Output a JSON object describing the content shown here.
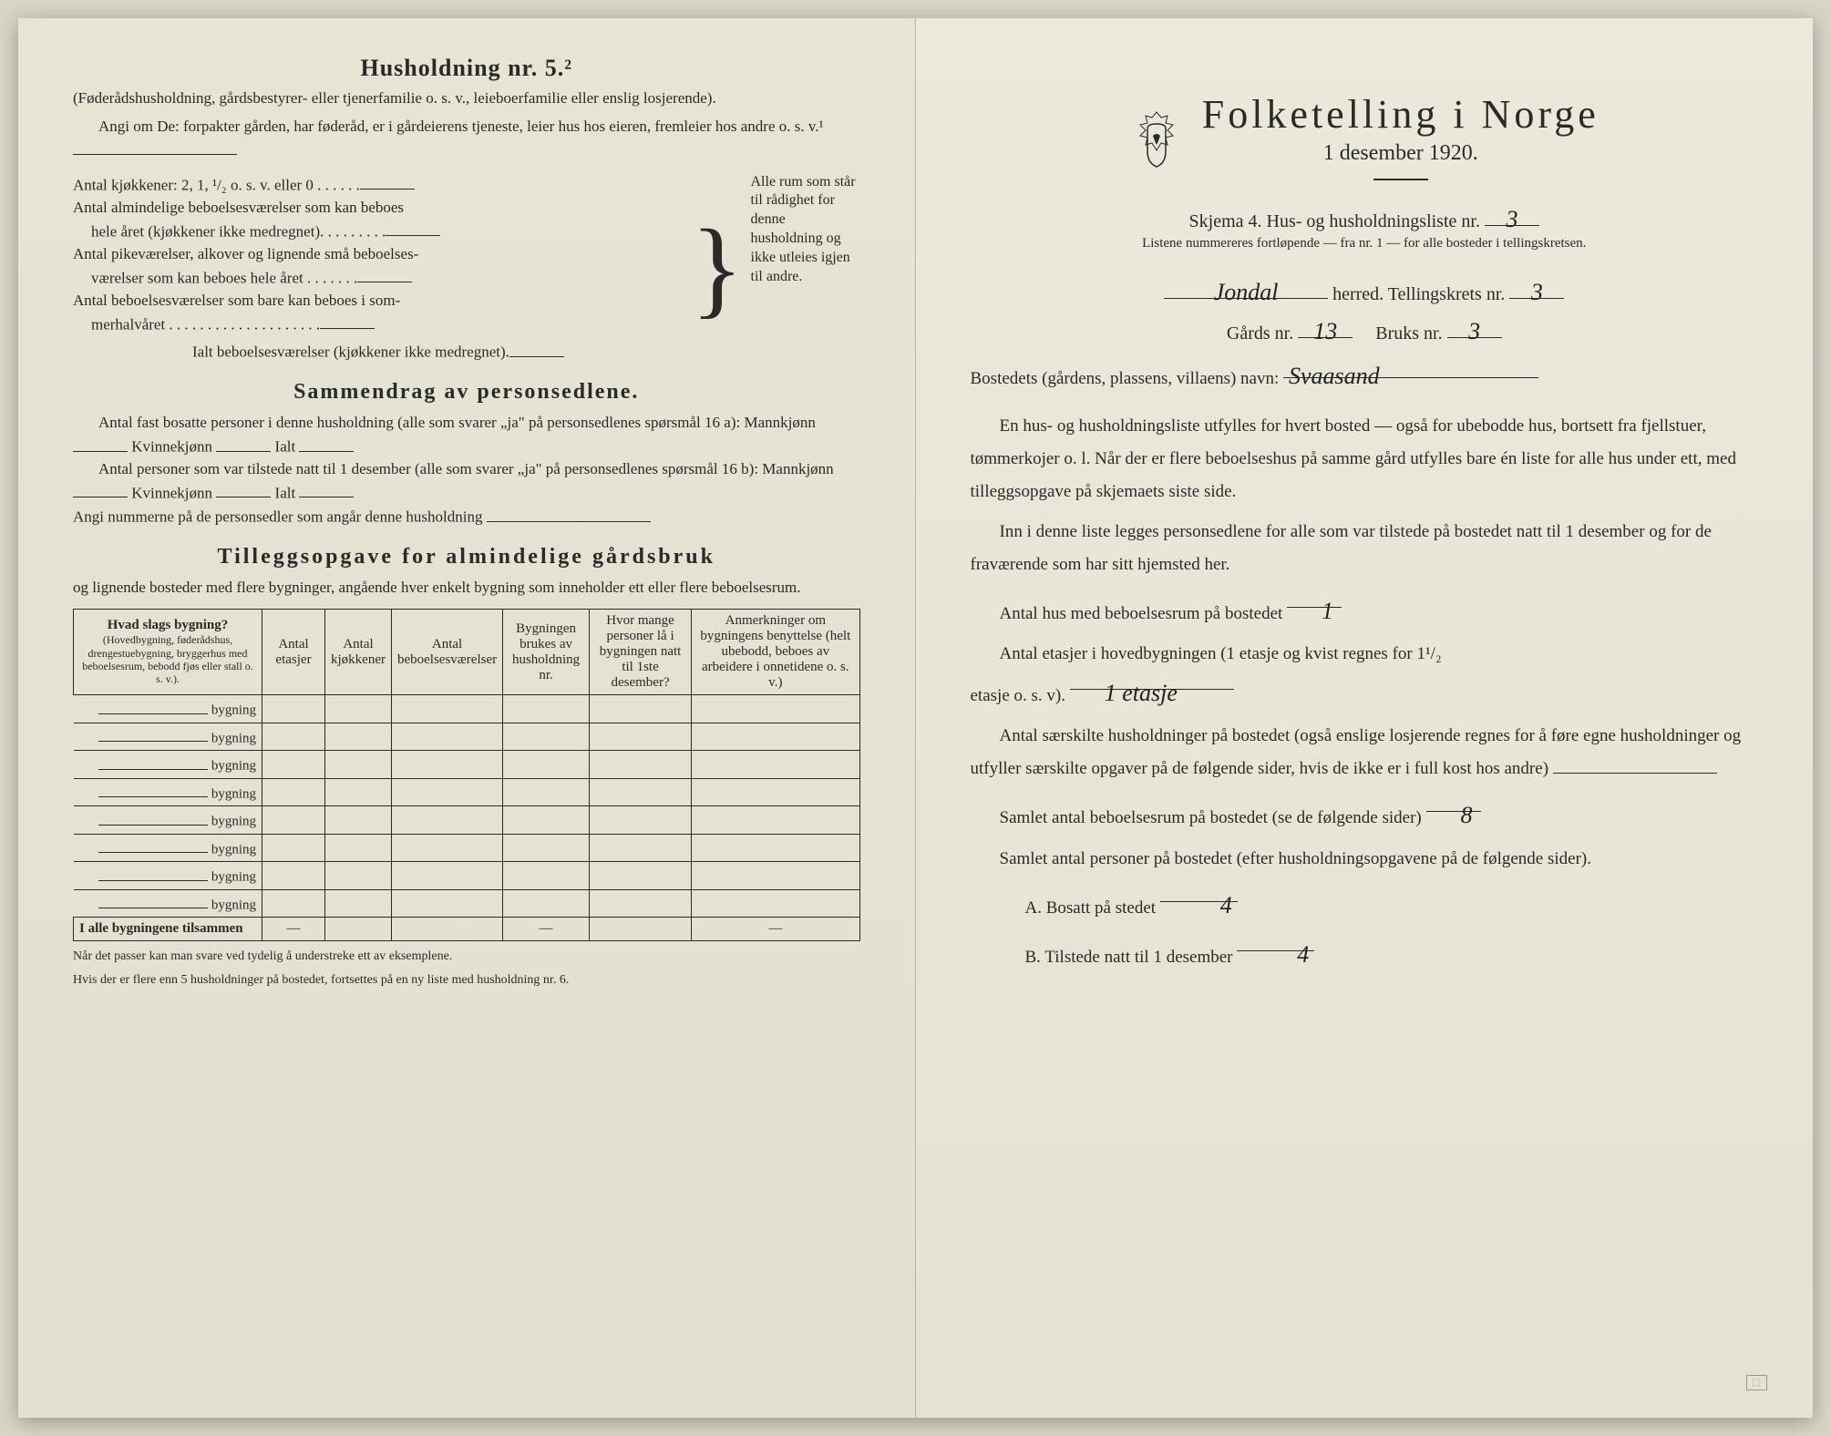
{
  "colors": {
    "paper": "#e8e6d8",
    "ink": "#2a2a28",
    "shadow": "rgba(0,0,0,0.3)",
    "hand": "#222222"
  },
  "left": {
    "h5_title": "Husholdning nr. 5.²",
    "h5_par": "(Føderådshusholdning, gårdsbestyrer- eller tjenerfamilie o. s. v., leieboerfamilie eller enslig losjerende).",
    "h5_angi": "Angi om De: forpakter gården, har føderåd, er i gårdeierens tjeneste, leier hus hos eieren, fremleier hos andre o. s. v.¹",
    "k_line1": "Antal kjøkkener: 2, 1, ¹/₂ o. s. v. eller 0 . . . . . .",
    "k_line2a": "Antal almindelige beboelsesværelser som kan beboes",
    "k_line2b": "hele året (kjøkkener ikke medregnet). . . . . . . . .",
    "k_line3a": "Antal pikeværelser, alkover og lignende små beboelses-",
    "k_line3b": "værelser som kan beboes hele året . . . . . . .",
    "k_line4a": "Antal beboelsesværelser som bare kan beboes i som-",
    "k_line4b": "merhalvåret . . . . . . . . . . . . . . . . . . . .",
    "k_total": "Ialt beboelsesværelser (kjøkkener ikke medregnet).",
    "brace_txt": "Alle rum som står til rådighet for denne husholdning og ikke utleies igjen til andre.",
    "samm_title": "Sammendrag av personsedlene.",
    "samm_l1": "Antal fast bosatte personer i denne husholdning (alle som svarer „ja\" på personsedlenes spørsmål 16 a): Mannkjønn",
    "kvinne": "Kvinnekjønn",
    "ialt": "Ialt",
    "samm_l2": "Antal personer som var tilstede natt til 1 desember (alle som svarer „ja\" på personsedlenes spørsmål 16 b): Mannkjønn",
    "samm_l3": "Angi nummerne på de personsedler som angår denne husholdning",
    "till_title": "Tilleggsopgave for almindelige gårdsbruk",
    "till_sub": "og lignende bosteder med flere bygninger, angående hver enkelt bygning som inneholder ett eller flere beboelsesrum.",
    "th1": "Hvad slags bygning?",
    "th1_sub": "(Hovedbygning, føderådshus, drengestuebygning, bryggerhus med beboelsesrum, bebodd fjøs eller stall o. s. v.).",
    "th2": "Antal etasjer",
    "th3": "Antal kjøkkener",
    "th4": "Antal beboelsesværelser",
    "th5": "Bygningen brukes av husholdning nr.",
    "th6": "Hvor mange personer lå i bygningen natt til 1ste desember?",
    "th7": "Anmerkninger om bygningens benyttelse (helt ubebodd, beboes av arbeidere i onnetidene o. s. v.)",
    "bygning": "bygning",
    "total_row": "I alle bygningene tilsammen",
    "fn1": "Når det passer kan man svare ved tydelig å understreke ett av eksemplene.",
    "fn2": "Hvis der er flere enn 5 husholdninger på bostedet, fortsettes på en ny liste med husholdning nr. 6."
  },
  "right": {
    "title": "Folketelling i Norge",
    "date": "1 desember 1920.",
    "skjema": "Skjema 4.  Hus- og husholdningsliste nr.",
    "skjema_val": "3",
    "listene": "Listene nummereres fortløpende — fra nr. 1 — for alle bosteder i tellingskretsen.",
    "herred_val": "Jondal",
    "herred": "herred.  Tellingskrets nr.",
    "krets_val": "3",
    "gards": "Gårds nr.",
    "gards_val": "13",
    "bruks": "Bruks nr.",
    "bruks_val": "3",
    "bosted": "Bostedets (gårdens, plassens, villaens) navn:",
    "bosted_val": "Svaasand",
    "p1": "En hus- og husholdningsliste utfylles for hvert bosted — også for ubebodde hus, bortsett fra fjellstuer, tømmerkojer o. l.  Når der er flere beboelseshus på samme gård utfylles bare én liste for alle hus under ett, med tilleggsopgave på skjemaets siste side.",
    "p2": "Inn i denne liste legges personsedlene for alle som var tilstede på bostedet natt til 1 desember og for de fraværende som har sitt hjemsted her.",
    "q1": "Antal hus med beboelsesrum på bostedet",
    "q1_val": "1",
    "q2a": "Antal etasjer i hovedbygningen (1 etasje og kvist regnes for 1¹/₂",
    "q2b": "etasje o. s. v).",
    "q2_val": "1 etasje",
    "q3": "Antal særskilte husholdninger på bostedet (også enslige losjerende regnes for å føre egne husholdninger og utfyller særskilte opgaver på de følgende sider, hvis de ikke er i full kost hos andre)",
    "q4": "Samlet antal beboelsesrum på bostedet (se de følgende sider)",
    "q4_val": "8",
    "q5": "Samlet antal personer på bostedet (efter husholdningsopgavene på de følgende sider).",
    "qA": "A.  Bosatt på stedet",
    "qA_val": "4",
    "qB": "B.  Tilstede natt til 1 desember",
    "qB_val": "4"
  }
}
